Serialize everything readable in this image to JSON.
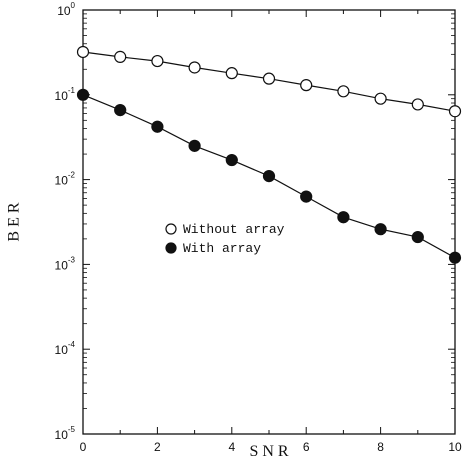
{
  "chart_data": {
    "type": "line",
    "xlabel": "S N R",
    "ylabel": "B E R",
    "xlim": [
      0,
      10
    ],
    "ylim": [
      1e-05,
      1
    ],
    "y_scale": "log",
    "grid": false,
    "legend_position": "center-left",
    "x_ticks": [
      0,
      2,
      4,
      6,
      8,
      10
    ],
    "y_ticks": [
      {
        "base": "10",
        "exp": "0",
        "value": 1
      },
      {
        "base": "10",
        "exp": "-1",
        "value": 0.1
      },
      {
        "base": "10",
        "exp": "-2",
        "value": 0.01
      },
      {
        "base": "10",
        "exp": "-3",
        "value": 0.001
      },
      {
        "base": "10",
        "exp": "-4",
        "value": 0.0001
      },
      {
        "base": "10",
        "exp": "-5",
        "value": 1e-05
      }
    ],
    "series": [
      {
        "name": "Without array",
        "marker": "open-circle",
        "x": [
          0,
          1,
          2,
          3,
          4,
          5,
          6,
          7,
          8,
          9,
          10
        ],
        "y": [
          0.32,
          0.28,
          0.25,
          0.21,
          0.18,
          0.155,
          0.13,
          0.11,
          0.09,
          0.077,
          0.064
        ]
      },
      {
        "name": "With array",
        "marker": "filled-circle",
        "x": [
          0,
          1,
          2,
          3,
          4,
          5,
          6,
          7,
          8,
          9,
          10
        ],
        "y": [
          0.1,
          0.066,
          0.042,
          0.025,
          0.017,
          0.011,
          0.0063,
          0.0036,
          0.0026,
          0.0021,
          0.0012
        ]
      }
    ]
  }
}
